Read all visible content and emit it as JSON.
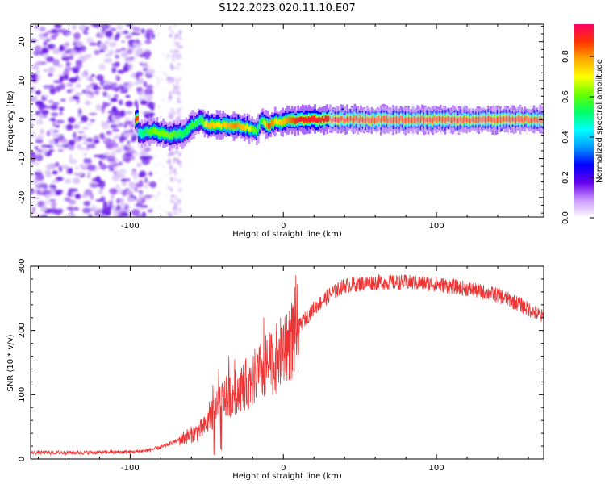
{
  "figure": {
    "title": "S122.2023.020.11.10.E07"
  },
  "chart_data": [
    {
      "type": "heatmap",
      "xlabel": "Height of straight line (km)",
      "ylabel": "Frequency (Hz)",
      "xlim": [
        -165,
        170
      ],
      "ylim": [
        -25,
        24.5
      ],
      "xticks": [
        -100,
        0,
        100
      ],
      "yticks": [
        -20,
        -10,
        0,
        10,
        20
      ],
      "grid": false,
      "colorbar": {
        "label": "Normalized spectral amplitude",
        "range": [
          0,
          0.96
        ],
        "ticks": [
          0.0,
          0.2,
          0.4,
          0.6,
          0.8
        ],
        "colors": [
          "#ffffff",
          "#cc99ff",
          "#6600ee",
          "#0000ff",
          "#0099ff",
          "#00ffff",
          "#00ff66",
          "#66ff00",
          "#ffff00",
          "#ffaa00",
          "#ff3300",
          "#ff0066"
        ]
      },
      "ridge": [
        {
          "x": -95,
          "f": -3.5,
          "a": 0.45
        },
        {
          "x": -85,
          "f": -3.0,
          "a": 0.6
        },
        {
          "x": -75,
          "f": -4.0,
          "a": 0.6
        },
        {
          "x": -65,
          "f": -3.5,
          "a": 0.5
        },
        {
          "x": -60,
          "f": -1.5,
          "a": 0.55
        },
        {
          "x": -55,
          "f": 0.0,
          "a": 0.5
        },
        {
          "x": -50,
          "f": -1.5,
          "a": 0.75
        },
        {
          "x": -42,
          "f": -1.5,
          "a": 0.7
        },
        {
          "x": -32,
          "f": -1.5,
          "a": 0.8
        },
        {
          "x": -24,
          "f": -2.0,
          "a": 0.7
        },
        {
          "x": -18,
          "f": -3.0,
          "a": 0.55
        },
        {
          "x": -15,
          "f": -0.5,
          "a": 0.5
        },
        {
          "x": -10,
          "f": -1.5,
          "a": 0.85
        },
        {
          "x": -5,
          "f": -0.5,
          "a": 0.7
        },
        {
          "x": 0,
          "f": -0.5,
          "a": 0.75
        },
        {
          "x": 10,
          "f": 0.0,
          "a": 0.9
        },
        {
          "x": 25,
          "f": 0.0,
          "a": 0.9
        },
        {
          "x": 50,
          "f": 0.0,
          "a": 0.85
        },
        {
          "x": 100,
          "f": 0.0,
          "a": 0.85
        },
        {
          "x": 170,
          "f": 0.0,
          "a": 0.85
        }
      ]
    },
    {
      "type": "line",
      "xlabel": "Height of straight line (km)",
      "ylabel": "SNR (10 * v/v)",
      "xlim": [
        -165,
        170
      ],
      "ylim": [
        0,
        300
      ],
      "xticks": [
        -100,
        0,
        100
      ],
      "yticks": [
        0,
        100,
        200,
        300
      ],
      "color": "#ee3333",
      "grid": false,
      "series_envelope": [
        [
          -165,
          10
        ],
        [
          -130,
          10
        ],
        [
          -100,
          11
        ],
        [
          -90,
          13
        ],
        [
          -80,
          18
        ],
        [
          -70,
          28
        ],
        [
          -60,
          38
        ],
        [
          -52,
          48
        ],
        [
          -45,
          75
        ],
        [
          -40,
          92
        ],
        [
          -30,
          105
        ],
        [
          -20,
          125
        ],
        [
          -10,
          145
        ],
        [
          -5,
          155
        ],
        [
          0,
          170
        ],
        [
          5,
          185
        ],
        [
          10,
          205
        ],
        [
          20,
          235
        ],
        [
          30,
          255
        ],
        [
          40,
          270
        ],
        [
          60,
          275
        ],
        [
          80,
          275
        ],
        [
          100,
          272
        ],
        [
          120,
          265
        ],
        [
          140,
          255
        ],
        [
          155,
          240
        ],
        [
          170,
          220
        ]
      ]
    }
  ]
}
